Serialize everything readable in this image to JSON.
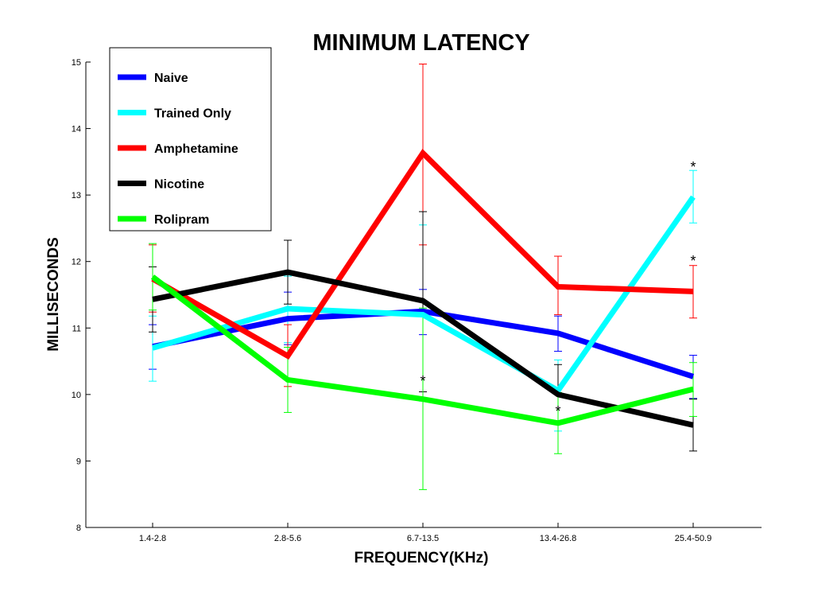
{
  "chart_data": {
    "type": "line",
    "title": "MINIMUM LATENCY",
    "xlabel": "FREQUENCY(KHz)",
    "ylabel": "MILLISECONDS",
    "categories": [
      "1.4-2.8",
      "2.8-5.6",
      "6.7-13.5",
      "13.4-26.8",
      "25.4-50.9"
    ],
    "ylim": [
      8,
      15
    ],
    "yticks": [
      "8",
      "9",
      "10",
      "11",
      "12",
      "13",
      "14",
      "15"
    ],
    "grid": false,
    "legend_position": "top-left",
    "series": [
      {
        "name": "Naive",
        "color": "#0000ff",
        "values": [
          10.72,
          11.14,
          11.25,
          10.92,
          10.27
        ],
        "err_low": [
          10.38,
          10.75,
          10.9,
          10.65,
          9.94
        ],
        "err_high": [
          11.05,
          11.54,
          11.58,
          11.18,
          10.59
        ]
      },
      {
        "name": "Trained Only",
        "color": "#00ffff",
        "values": [
          10.7,
          11.29,
          11.2,
          10.06,
          12.97
        ],
        "err_low": [
          10.2,
          10.78,
          9.9,
          9.45,
          12.58
        ],
        "err_high": [
          11.18,
          11.78,
          12.55,
          10.52,
          13.37
        ]
      },
      {
        "name": "Amphetamine",
        "color": "#ff0000",
        "values": [
          11.74,
          10.58,
          13.63,
          11.62,
          11.55
        ],
        "err_low": [
          11.24,
          10.12,
          12.25,
          11.2,
          11.15
        ],
        "err_high": [
          12.25,
          11.05,
          14.97,
          12.08,
          11.94
        ]
      },
      {
        "name": "Nicotine",
        "color": "#000000",
        "values": [
          11.43,
          11.84,
          11.41,
          10.0,
          9.54
        ],
        "err_low": [
          10.94,
          11.36,
          10.04,
          9.55,
          9.15
        ],
        "err_high": [
          11.92,
          12.32,
          12.75,
          10.45,
          9.93
        ]
      },
      {
        "name": "Rolipram",
        "color": "#00ff00",
        "values": [
          11.77,
          10.22,
          9.93,
          9.57,
          10.08
        ],
        "err_low": [
          11.27,
          9.73,
          8.57,
          9.11,
          9.67
        ],
        "err_high": [
          12.27,
          10.71,
          11.3,
          10.03,
          10.48
        ]
      }
    ],
    "annotations": [
      {
        "text": "*",
        "category": "6.7-13.5",
        "y": 10.2
      },
      {
        "text": "*",
        "category": "13.4-26.8",
        "y": 9.75
      },
      {
        "text": "*",
        "category": "25.4-50.9",
        "y": 13.42
      },
      {
        "text": "*",
        "category": "25.4-50.9",
        "y": 12.01
      }
    ]
  }
}
